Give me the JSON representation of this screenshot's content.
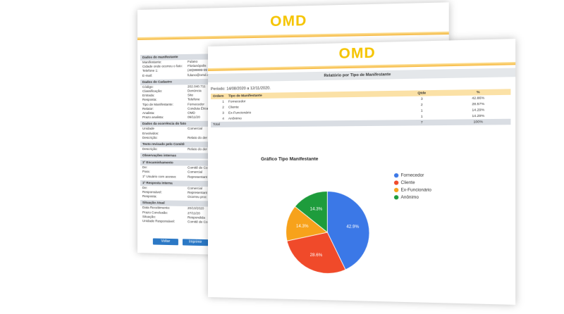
{
  "back_page": {
    "logo": "OMD",
    "sections": [
      {
        "title": "Dados do manifestante",
        "fields": [
          [
            "Manifestante:",
            "Fulano"
          ],
          [
            "Cidade onde ocorreu o fato:",
            "Florianópolis"
          ],
          [
            "Telefone 1:",
            "(48)99999-99"
          ],
          [
            "E-mail:",
            "fulano@omd.co"
          ]
        ]
      },
      {
        "title": "Dados do Cadastro",
        "fields": [
          [
            "Código:",
            "202.040.711"
          ],
          [
            "Classificação:",
            "Denúncia"
          ],
          [
            "Entrada:",
            "Site"
          ],
          [
            "Resposta:",
            "Telefone"
          ],
          [
            "Tipo de Manifestante:",
            "Fornecedor"
          ],
          [
            "Relator:",
            "Conduta Ética"
          ],
          [
            "Analista:",
            "OMD"
          ],
          [
            "Prazo analista:",
            "09/11/20"
          ]
        ]
      },
      {
        "title": "Dados da ocorrência do fato",
        "fields": [
          [
            "Unidade",
            "Comercial"
          ],
          [
            "Envolvidos:"
          ],
          [
            "Descrição:",
            "Relato do der"
          ]
        ]
      },
      {
        "title": "Texto revisado pelo Comitê",
        "fields": [
          [
            "Descrição:",
            "Relato do der"
          ]
        ]
      },
      {
        "title": "Observações internas",
        "fields": []
      },
      {
        "title": "1º Encaminhamento",
        "fields": [
          [
            "De:",
            "Comitê de Co"
          ],
          [
            "Para:",
            "Comercial"
          ],
          [
            "1º Usuário com acesso:",
            "Representant"
          ]
        ]
      },
      {
        "title": "1ª Resposta interna",
        "fields": [
          [
            "De:",
            "Comercial"
          ],
          [
            "Responsável:",
            "Representant"
          ],
          [
            "Resposta:",
            "Ocorreu proc"
          ]
        ]
      },
      {
        "title": "Situação Atual",
        "fields": [
          [
            "Data Recebimento:",
            "20/10/2020"
          ],
          [
            "Prazo Conclusão:",
            "27/11/20"
          ],
          [
            "Situação:",
            "Respondida"
          ],
          [
            "Unidade Responsável:",
            "Comitê de Co"
          ]
        ]
      }
    ],
    "buttons": [
      "Voltar",
      "Imprimir"
    ]
  },
  "report": {
    "logo": "OMD",
    "title": "Relatório por Tipo de Manifestante",
    "period": "Período: 14/08/2020 a 12/11/2020.",
    "columns": [
      "Ordem",
      "Tipo de Manifestante",
      "Qtde",
      "%"
    ],
    "rows": [
      [
        "1",
        "Fornecedor",
        "3",
        "42.86%"
      ],
      [
        "2",
        "Cliente",
        "2",
        "28.57%"
      ],
      [
        "3",
        "Ex-Funcionário",
        "1",
        "14.29%"
      ],
      [
        "4",
        "Anônimo",
        "1",
        "14.29%"
      ]
    ],
    "total": [
      "Total",
      "7",
      "100%"
    ]
  },
  "chart_data": {
    "type": "pie",
    "title": "Gráfico Tipo Manifestante",
    "categories": [
      "Fornecedor",
      "Cliente",
      "Ex-Funcionário",
      "Anônimo"
    ],
    "values": [
      42.9,
      28.6,
      14.3,
      14.3
    ],
    "value_labels": [
      "42.9%",
      "28.6%",
      "14.3%",
      "14.3%"
    ],
    "colors": [
      "#3b78e7",
      "#f04a2a",
      "#f7a21b",
      "#1e9c3c"
    ]
  }
}
